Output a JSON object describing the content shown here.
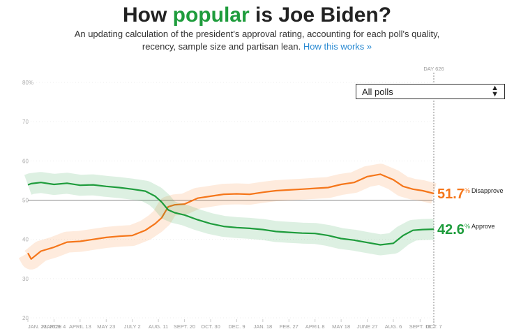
{
  "chart_data": {
    "type": "line",
    "title_parts": [
      "How",
      "popular",
      "is Joe Biden?"
    ],
    "subtitle": [
      "An updating calculation of the president's approval rating, accounting for each poll's quality,",
      "recency, sample size and partisan lean."
    ],
    "link": "How this works »",
    "filter": "All polls",
    "annotation": "DAY 626",
    "unit": "%",
    "x": [
      0,
      5,
      20,
      40,
      60,
      80,
      100,
      120,
      140,
      160,
      180,
      195,
      205,
      215,
      225,
      240,
      260,
      280,
      300,
      320,
      340,
      360,
      380,
      400,
      420,
      440,
      460,
      480,
      500,
      520,
      540,
      560,
      575,
      590,
      605,
      622
    ],
    "xlim": [
      0,
      622
    ],
    "xticks": [
      {
        "value": 0,
        "label": "JAN. 23, 2021"
      },
      {
        "value": 40,
        "label": "MARCH 4"
      },
      {
        "value": 80,
        "label": "APRIL 13"
      },
      {
        "value": 120,
        "label": "MAY 23"
      },
      {
        "value": 160,
        "label": "JULY 2"
      },
      {
        "value": 200,
        "label": "AUG. 11"
      },
      {
        "value": 240,
        "label": "SEPT. 20"
      },
      {
        "value": 280,
        "label": "OCT. 30"
      },
      {
        "value": 320,
        "label": "DEC. 9"
      },
      {
        "value": 360,
        "label": "JAN. 18"
      },
      {
        "value": 400,
        "label": "FEB. 27"
      },
      {
        "value": 440,
        "label": "APRIL 8"
      },
      {
        "value": 480,
        "label": "MAY 18"
      },
      {
        "value": 520,
        "label": "JUNE 27"
      },
      {
        "value": 560,
        "label": "AUG. 6"
      },
      {
        "value": 601,
        "label": "SEPT. 16"
      },
      {
        "value": 622,
        "label": "OCT. 7"
      }
    ],
    "ylim": [
      20,
      80
    ],
    "yticks": [
      20,
      30,
      40,
      50,
      60,
      70,
      {
        "value": 80,
        "label": "80%"
      }
    ],
    "grid": true,
    "series": [
      {
        "name": "Approve",
        "color": "#1e9c3c",
        "values": [
          53.9,
          54.2,
          54.5,
          54,
          54.3,
          53.8,
          53.9,
          53.5,
          53.2,
          52.8,
          52.3,
          51,
          49.5,
          47.5,
          46.8,
          46.2,
          45,
          44,
          43.3,
          43,
          42.8,
          42.5,
          42,
          41.8,
          41.6,
          41.5,
          41,
          40.2,
          39.8,
          39.2,
          38.6,
          39,
          41,
          42.3,
          42.5,
          42.6
        ]
      },
      {
        "name": "Disapprove",
        "color": "#f5761a",
        "values": [
          36.5,
          35,
          37,
          38,
          39.3,
          39.5,
          40,
          40.5,
          40.8,
          41,
          42.3,
          44,
          45.5,
          48.3,
          48.8,
          49,
          50.5,
          51,
          51.5,
          51.6,
          51.5,
          52,
          52.4,
          52.6,
          52.8,
          53,
          53.2,
          54,
          54.5,
          56,
          56.6,
          55.2,
          53.5,
          52.8,
          52.4,
          51.7
        ]
      }
    ]
  }
}
